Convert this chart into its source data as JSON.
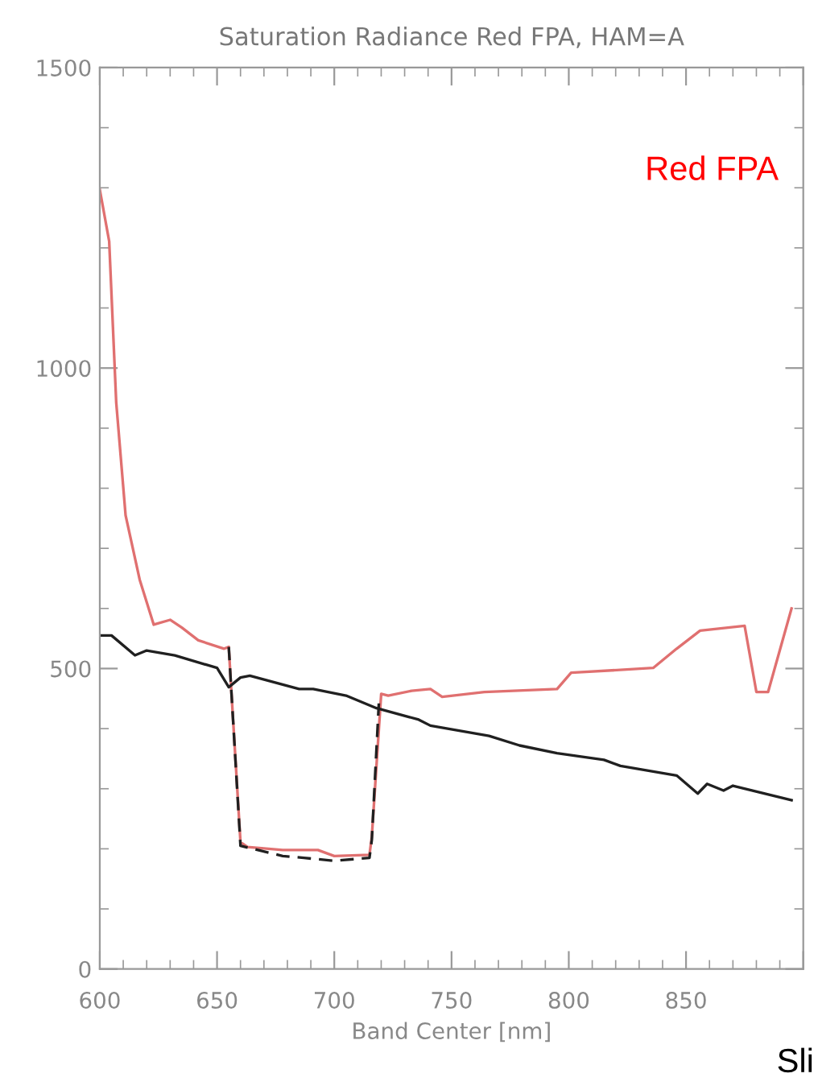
{
  "chart_data": {
    "type": "line",
    "title": "Saturation Radiance Red FPA, HAM=A",
    "xlabel": "Band Center [nm]",
    "xlim": [
      600,
      900
    ],
    "xticks": [
      600,
      650,
      700,
      750,
      800,
      850,
      {
        "value": 900,
        "label": null
      }
    ],
    "ylim": [
      0,
      1500
    ],
    "yticks": [
      0,
      500,
      1000,
      1500
    ],
    "grid": false,
    "legend": false,
    "marker": "none",
    "series": [
      {
        "color": "#e07070",
        "line_style": "solid",
        "x": [
          600,
          604,
          607,
          611,
          617,
          623,
          630,
          635,
          642,
          653,
          655,
          656,
          660,
          663,
          678,
          693,
          700,
          715,
          716,
          720,
          723,
          733,
          741,
          746,
          764,
          795,
          801,
          836,
          846,
          856,
          875,
          880,
          885,
          895
        ],
        "values": [
          1297,
          1211,
          943,
          755,
          648,
          573,
          581,
          568,
          547,
          533,
          536,
          469,
          211,
          203,
          198,
          198,
          188,
          190,
          220,
          458,
          455,
          463,
          466,
          453,
          461,
          466,
          493,
          501,
          533,
          563,
          571,
          461,
          461,
          600
        ]
      },
      {
        "color": "#202020",
        "line_style": "solid",
        "x": [
          600,
          605,
          615,
          620,
          632,
          650,
          655,
          660,
          664,
          685,
          691,
          705,
          718,
          736,
          741,
          766,
          779,
          795,
          815,
          822,
          846,
          855,
          859,
          866,
          870,
          895
        ],
        "values": [
          555,
          555,
          522,
          530,
          522,
          501,
          469,
          485,
          488,
          466,
          466,
          455,
          434,
          415,
          405,
          388,
          372,
          359,
          348,
          338,
          322,
          292,
          308,
          297,
          305,
          281
        ]
      },
      {
        "color": "#202020",
        "line_style": "dashed",
        "x": [
          655,
          656,
          660,
          678,
          687,
          700,
          715,
          716,
          719
        ],
        "values": [
          536,
          469,
          205,
          188,
          185,
          180,
          185,
          215,
          442
        ]
      }
    ],
    "annotations": [
      "Red FPA",
      "Sli"
    ]
  }
}
